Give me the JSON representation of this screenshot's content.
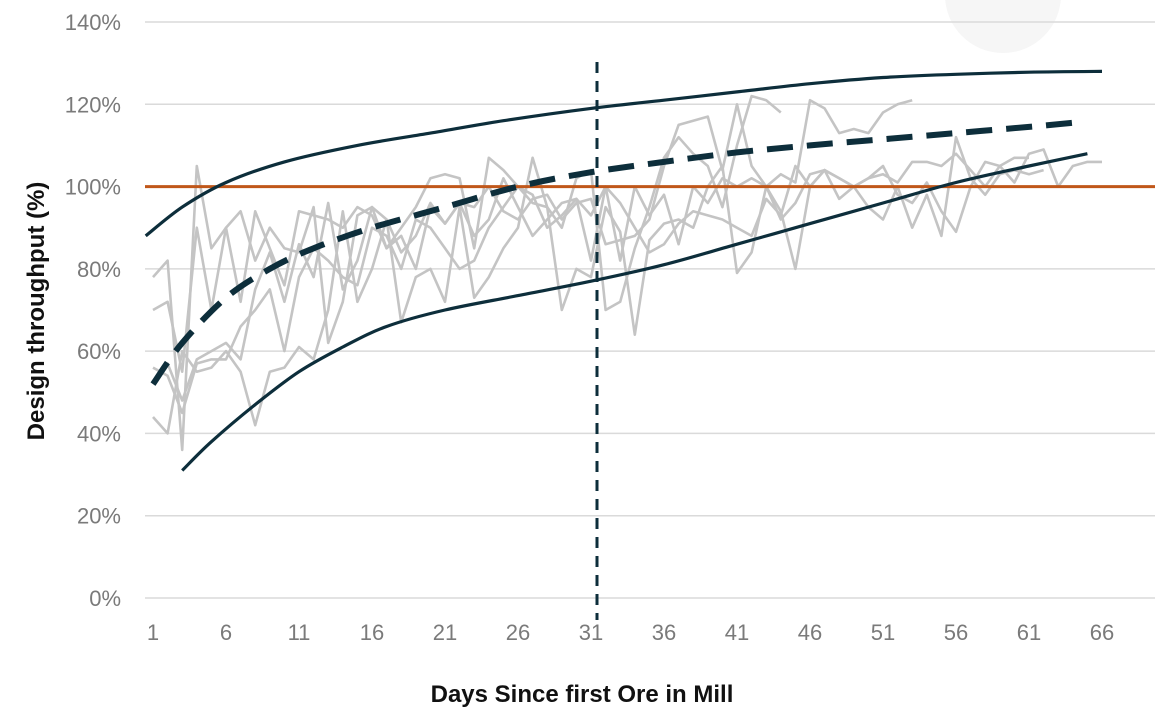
{
  "chart_data": {
    "type": "line",
    "title": "",
    "xlabel": "Days Since first Ore in Mill",
    "ylabel": "Design throughput (%)",
    "xlim": [
      1,
      69
    ],
    "ylim": [
      0,
      140
    ],
    "x_ticks": [
      1,
      6,
      11,
      16,
      21,
      26,
      31,
      36,
      41,
      46,
      51,
      56,
      61,
      66
    ],
    "y_ticks": [
      {
        "value": 0,
        "label": "0%"
      },
      {
        "value": 20,
        "label": "20%"
      },
      {
        "value": 40,
        "label": "40%"
      },
      {
        "value": 60,
        "label": "60%"
      },
      {
        "value": 80,
        "label": "80%"
      },
      {
        "value": 100,
        "label": "100%"
      },
      {
        "value": 120,
        "label": "120%"
      },
      {
        "value": 140,
        "label": "140%"
      }
    ],
    "grid": "horizontal",
    "legend": "none",
    "colors": {
      "reference": "#c0571a",
      "envelope": "#0d2e3b",
      "average": "#0d2e3b",
      "mills": "#c4c4c4",
      "grid": "#dadada",
      "tick_text": "#7a7a7a"
    },
    "reference_line": {
      "y": 100
    },
    "vertical_marker": {
      "x": 31
    },
    "series": [
      {
        "role": "upper-envelope",
        "style": "solid",
        "x": [
          0.5,
          3,
          6,
          10,
          15,
          20,
          25,
          31,
          36,
          41,
          46,
          51,
          56,
          61,
          66
        ],
        "y": [
          88,
          95,
          101,
          106,
          110,
          113,
          116,
          119,
          121,
          123,
          125,
          126.5,
          127.3,
          127.8,
          128
        ]
      },
      {
        "role": "lower-envelope",
        "style": "solid",
        "x": [
          3,
          5,
          8,
          11,
          14,
          17,
          21,
          26,
          31,
          36,
          41,
          46,
          51,
          56,
          61,
          65
        ],
        "y": [
          31,
          38,
          47,
          55,
          61,
          66,
          70,
          73.5,
          77,
          81,
          86,
          91,
          96,
          101,
          105,
          108
        ]
      },
      {
        "role": "average",
        "style": "dashed",
        "x": [
          1,
          3,
          6,
          9,
          12,
          16,
          21,
          26,
          31,
          36,
          41,
          46,
          51,
          56,
          61,
          64
        ],
        "y": [
          52,
          62,
          73,
          80,
          85,
          90,
          95,
          100,
          103.5,
          106,
          108.3,
          110,
          111.5,
          113,
          114.5,
          115.5
        ]
      },
      {
        "role": "mill",
        "x": [
          1,
          2,
          3,
          4,
          5,
          6,
          7,
          8,
          9,
          10,
          11,
          12,
          13,
          14,
          15,
          16,
          17,
          18,
          19,
          20,
          21,
          22,
          23,
          24,
          25,
          26,
          27,
          28,
          29,
          30,
          31,
          32,
          33,
          34,
          35,
          36,
          37,
          38,
          39,
          40,
          41,
          42,
          43,
          44
        ],
        "y": [
          78,
          82,
          36,
          105,
          85,
          90,
          72,
          94,
          85,
          76,
          94,
          93,
          92,
          90,
          95,
          93,
          85,
          90,
          95,
          102,
          103,
          102,
          85,
          107,
          104,
          100,
          96,
          95,
          90,
          102,
          104,
          70,
          72,
          85,
          95,
          107,
          112,
          108,
          105,
          95,
          110,
          122,
          121,
          118
        ]
      },
      {
        "role": "mill",
        "x": [
          1,
          2,
          3,
          4,
          5,
          6,
          7,
          8,
          9,
          10,
          11,
          12,
          13,
          14,
          15,
          16,
          17,
          18,
          19,
          20,
          21,
          22,
          23,
          24,
          25,
          26,
          27,
          28,
          29,
          30,
          31,
          32,
          33,
          34,
          35,
          36,
          37,
          38,
          39,
          40,
          41,
          42,
          43,
          44,
          45,
          46,
          47,
          48,
          49,
          50,
          51,
          52,
          53
        ],
        "y": [
          70,
          72,
          55,
          90,
          70,
          90,
          94,
          82,
          90,
          85,
          84,
          95,
          62,
          72,
          93,
          95,
          85,
          88,
          80,
          95,
          91,
          96,
          95,
          100,
          94,
          92,
          97,
          98,
          92,
          96,
          97,
          86,
          87,
          88,
          92,
          105,
          115,
          116,
          117,
          104,
          120,
          105,
          100,
          103,
          101,
          121,
          119,
          113,
          114,
          113,
          118,
          120,
          121
        ]
      },
      {
        "role": "mill",
        "x": [
          1,
          2,
          3,
          4,
          5,
          6,
          7,
          8,
          9,
          10,
          11,
          12,
          13,
          14,
          15,
          16,
          17,
          18,
          19,
          20,
          21,
          22,
          23,
          24,
          25,
          26,
          27,
          28,
          29,
          30,
          31,
          32,
          33,
          34,
          35,
          36,
          37,
          38,
          39,
          40,
          41,
          42,
          43,
          44,
          45,
          46,
          47,
          48,
          49,
          50,
          51,
          52,
          53,
          54,
          55,
          56,
          57,
          58,
          59,
          60,
          61,
          62,
          63,
          64,
          65,
          66
        ],
        "y": [
          56,
          54,
          45,
          57,
          58,
          58,
          66,
          70,
          75,
          60,
          78,
          85,
          82,
          78,
          76,
          90,
          88,
          80,
          92,
          90,
          85,
          80,
          82,
          90,
          95,
          100,
          98,
          90,
          93,
          97,
          93,
          100,
          82,
          100,
          93,
          98,
          86,
          100,
          96,
          102,
          100,
          102,
          100,
          92,
          96,
          103,
          104,
          102,
          100,
          102,
          103,
          101,
          106,
          106,
          105,
          108,
          104,
          100,
          105,
          101,
          108,
          109,
          100,
          105,
          106,
          106
        ]
      },
      {
        "role": "mill",
        "x": [
          1,
          2,
          3,
          4,
          5,
          6,
          7,
          8,
          9,
          10,
          11,
          12,
          13,
          14,
          15,
          16,
          17,
          18,
          19,
          20,
          21,
          22,
          23,
          24,
          25,
          26,
          27,
          28,
          29,
          30,
          31,
          32,
          33,
          34,
          35,
          36,
          37,
          38,
          39,
          40,
          41,
          42,
          43,
          44,
          45,
          46,
          47,
          48,
          49,
          50,
          51,
          52,
          53,
          54,
          55,
          56,
          57,
          58,
          59,
          60,
          61,
          62
        ],
        "y": [
          44,
          40,
          60,
          55,
          56,
          60,
          55,
          42,
          55,
          56,
          61,
          58,
          70,
          94,
          72,
          80,
          92,
          67,
          78,
          80,
          72,
          95,
          73,
          78,
          85,
          90,
          107,
          95,
          70,
          80,
          78,
          95,
          89,
          64,
          87,
          91,
          92,
          90,
          100,
          105,
          79,
          84,
          100,
          94,
          80,
          100,
          104,
          102,
          100,
          95,
          92,
          100,
          90,
          98,
          88,
          112,
          102,
          98,
          103,
          104,
          103,
          104
        ]
      },
      {
        "role": "mill",
        "x": [
          1,
          2,
          3,
          4,
          5,
          6,
          7,
          8,
          9,
          10,
          11,
          12,
          13,
          14,
          15,
          16,
          17,
          18,
          19,
          20,
          21,
          22,
          23,
          24,
          25,
          26,
          27,
          28,
          29,
          30,
          31,
          32,
          33,
          34,
          35,
          36,
          37,
          38,
          39,
          40,
          41,
          42,
          43,
          44,
          45,
          46,
          47,
          48,
          49,
          50,
          51,
          52,
          53,
          54,
          55,
          56,
          57,
          58,
          59,
          60,
          61
        ],
        "y": [
          52,
          57,
          48,
          58,
          60,
          62,
          58,
          75,
          84,
          72,
          86,
          78,
          96,
          75,
          82,
          95,
          92,
          84,
          88,
          96,
          91,
          96,
          88,
          92,
          102,
          95,
          88,
          92,
          96,
          97,
          82,
          100,
          96,
          90,
          84,
          86,
          91,
          94,
          93,
          92,
          90,
          88,
          97,
          93,
          105,
          100,
          104,
          97,
          100,
          102,
          105,
          98,
          96,
          101,
          94,
          89,
          100,
          106,
          105,
          107,
          107
        ]
      }
    ]
  }
}
